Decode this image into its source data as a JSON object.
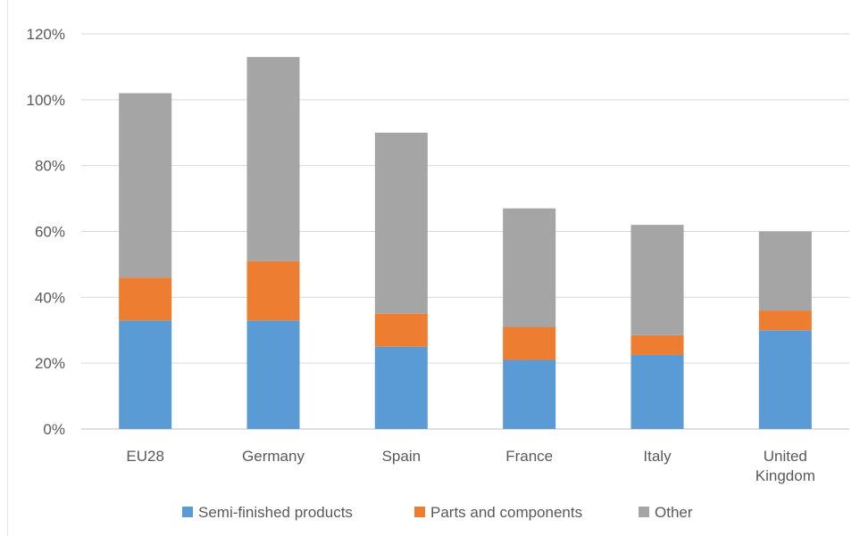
{
  "chart_data": {
    "type": "bar",
    "stacked": true,
    "categories": [
      "EU28",
      "Germany",
      "Spain",
      "France",
      "Italy",
      "United Kingdom"
    ],
    "category_lines": [
      [
        "EU28"
      ],
      [
        "Germany"
      ],
      [
        "Spain"
      ],
      [
        "France"
      ],
      [
        "Italy"
      ],
      [
        "United",
        "Kingdom"
      ]
    ],
    "series": [
      {
        "name": "Semi-finished products",
        "color": "#5b9bd5",
        "values": [
          33,
          33,
          25,
          21,
          22.5,
          30
        ]
      },
      {
        "name": "Parts and components",
        "color": "#ed7d31",
        "values": [
          13,
          18,
          10,
          10,
          6,
          6
        ]
      },
      {
        "name": "Other",
        "color": "#a5a5a5",
        "values": [
          56,
          62,
          55,
          36,
          33.5,
          24
        ]
      }
    ],
    "title": "",
    "xlabel": "",
    "ylabel": "",
    "ylim": [
      0,
      120
    ],
    "y_ticks": [
      0,
      20,
      40,
      60,
      80,
      100,
      120
    ],
    "y_tick_labels": [
      "0%",
      "20%",
      "40%",
      "60%",
      "80%",
      "100%",
      "120%"
    ],
    "grid": true,
    "legend_position": "bottom"
  }
}
